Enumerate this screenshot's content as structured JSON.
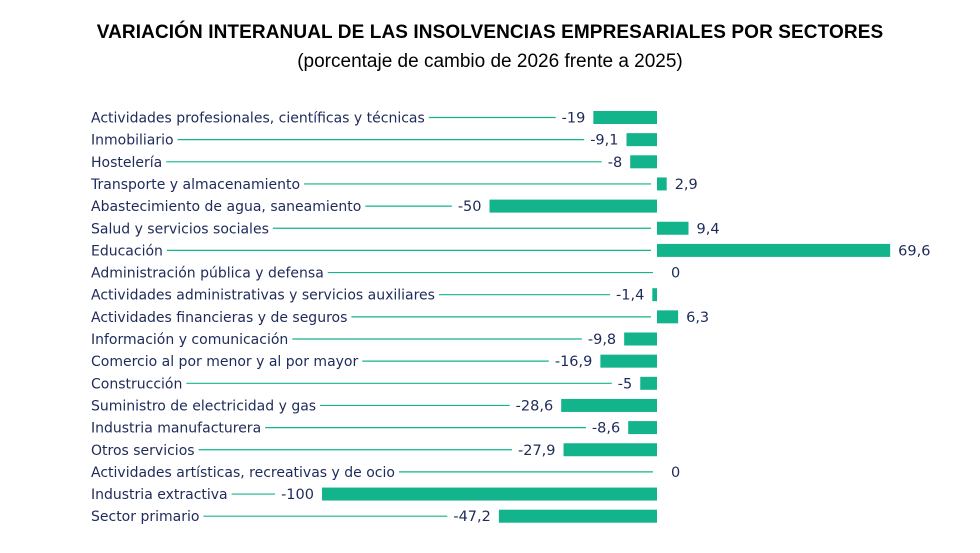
{
  "title": "VARIACIÓN INTERANUAL DE LAS INSOLVENCIAS EMPRESARIALES POR SECTORES",
  "subtitle": "(porcentaje de cambio de 2026 frente a 2025)",
  "colors": {
    "bar": "#13b48b",
    "line": "#13b48b",
    "text": "#1e2a5a"
  },
  "chart_data": {
    "type": "bar",
    "orientation": "horizontal",
    "categories": [
      "Actividades profesionales, científicas y técnicas",
      "Inmobiliario",
      "Hostelería",
      "Transporte y almacenamiento",
      "Abastecimiento de agua, saneamiento",
      "Salud y servicios sociales",
      "Educación",
      "Administración pública y defensa",
      "Actividades administrativas y servicios auxiliares",
      "Actividades financieras y de seguros",
      "Información y comunicación",
      "Comercio al por menor y al por mayor",
      "Construcción",
      "Suministro de electricidad y gas",
      "Industria manufacturera",
      "Otros servicios",
      "Actividades artísticas, recreativas y de ocio",
      "Industria extractiva",
      "Sector primario"
    ],
    "values": [
      -19,
      -9.1,
      -8,
      2.9,
      -50,
      9.4,
      69.6,
      0,
      -1.4,
      6.3,
      -9.8,
      -16.9,
      -5,
      -28.6,
      -8.6,
      -27.9,
      0,
      -100,
      -47.2
    ],
    "value_labels": [
      "-19",
      "-9,1",
      "-8",
      "2,9",
      "-50",
      "9,4",
      "69,6",
      "0",
      "-1,4",
      "6,3",
      "-9,8",
      "-16,9",
      "-5",
      "-28,6",
      "-8,6",
      "-27,9",
      "0",
      "-100",
      "-47,2"
    ],
    "xlim": [
      -100,
      69.6
    ],
    "grid": false,
    "legend": "none"
  }
}
